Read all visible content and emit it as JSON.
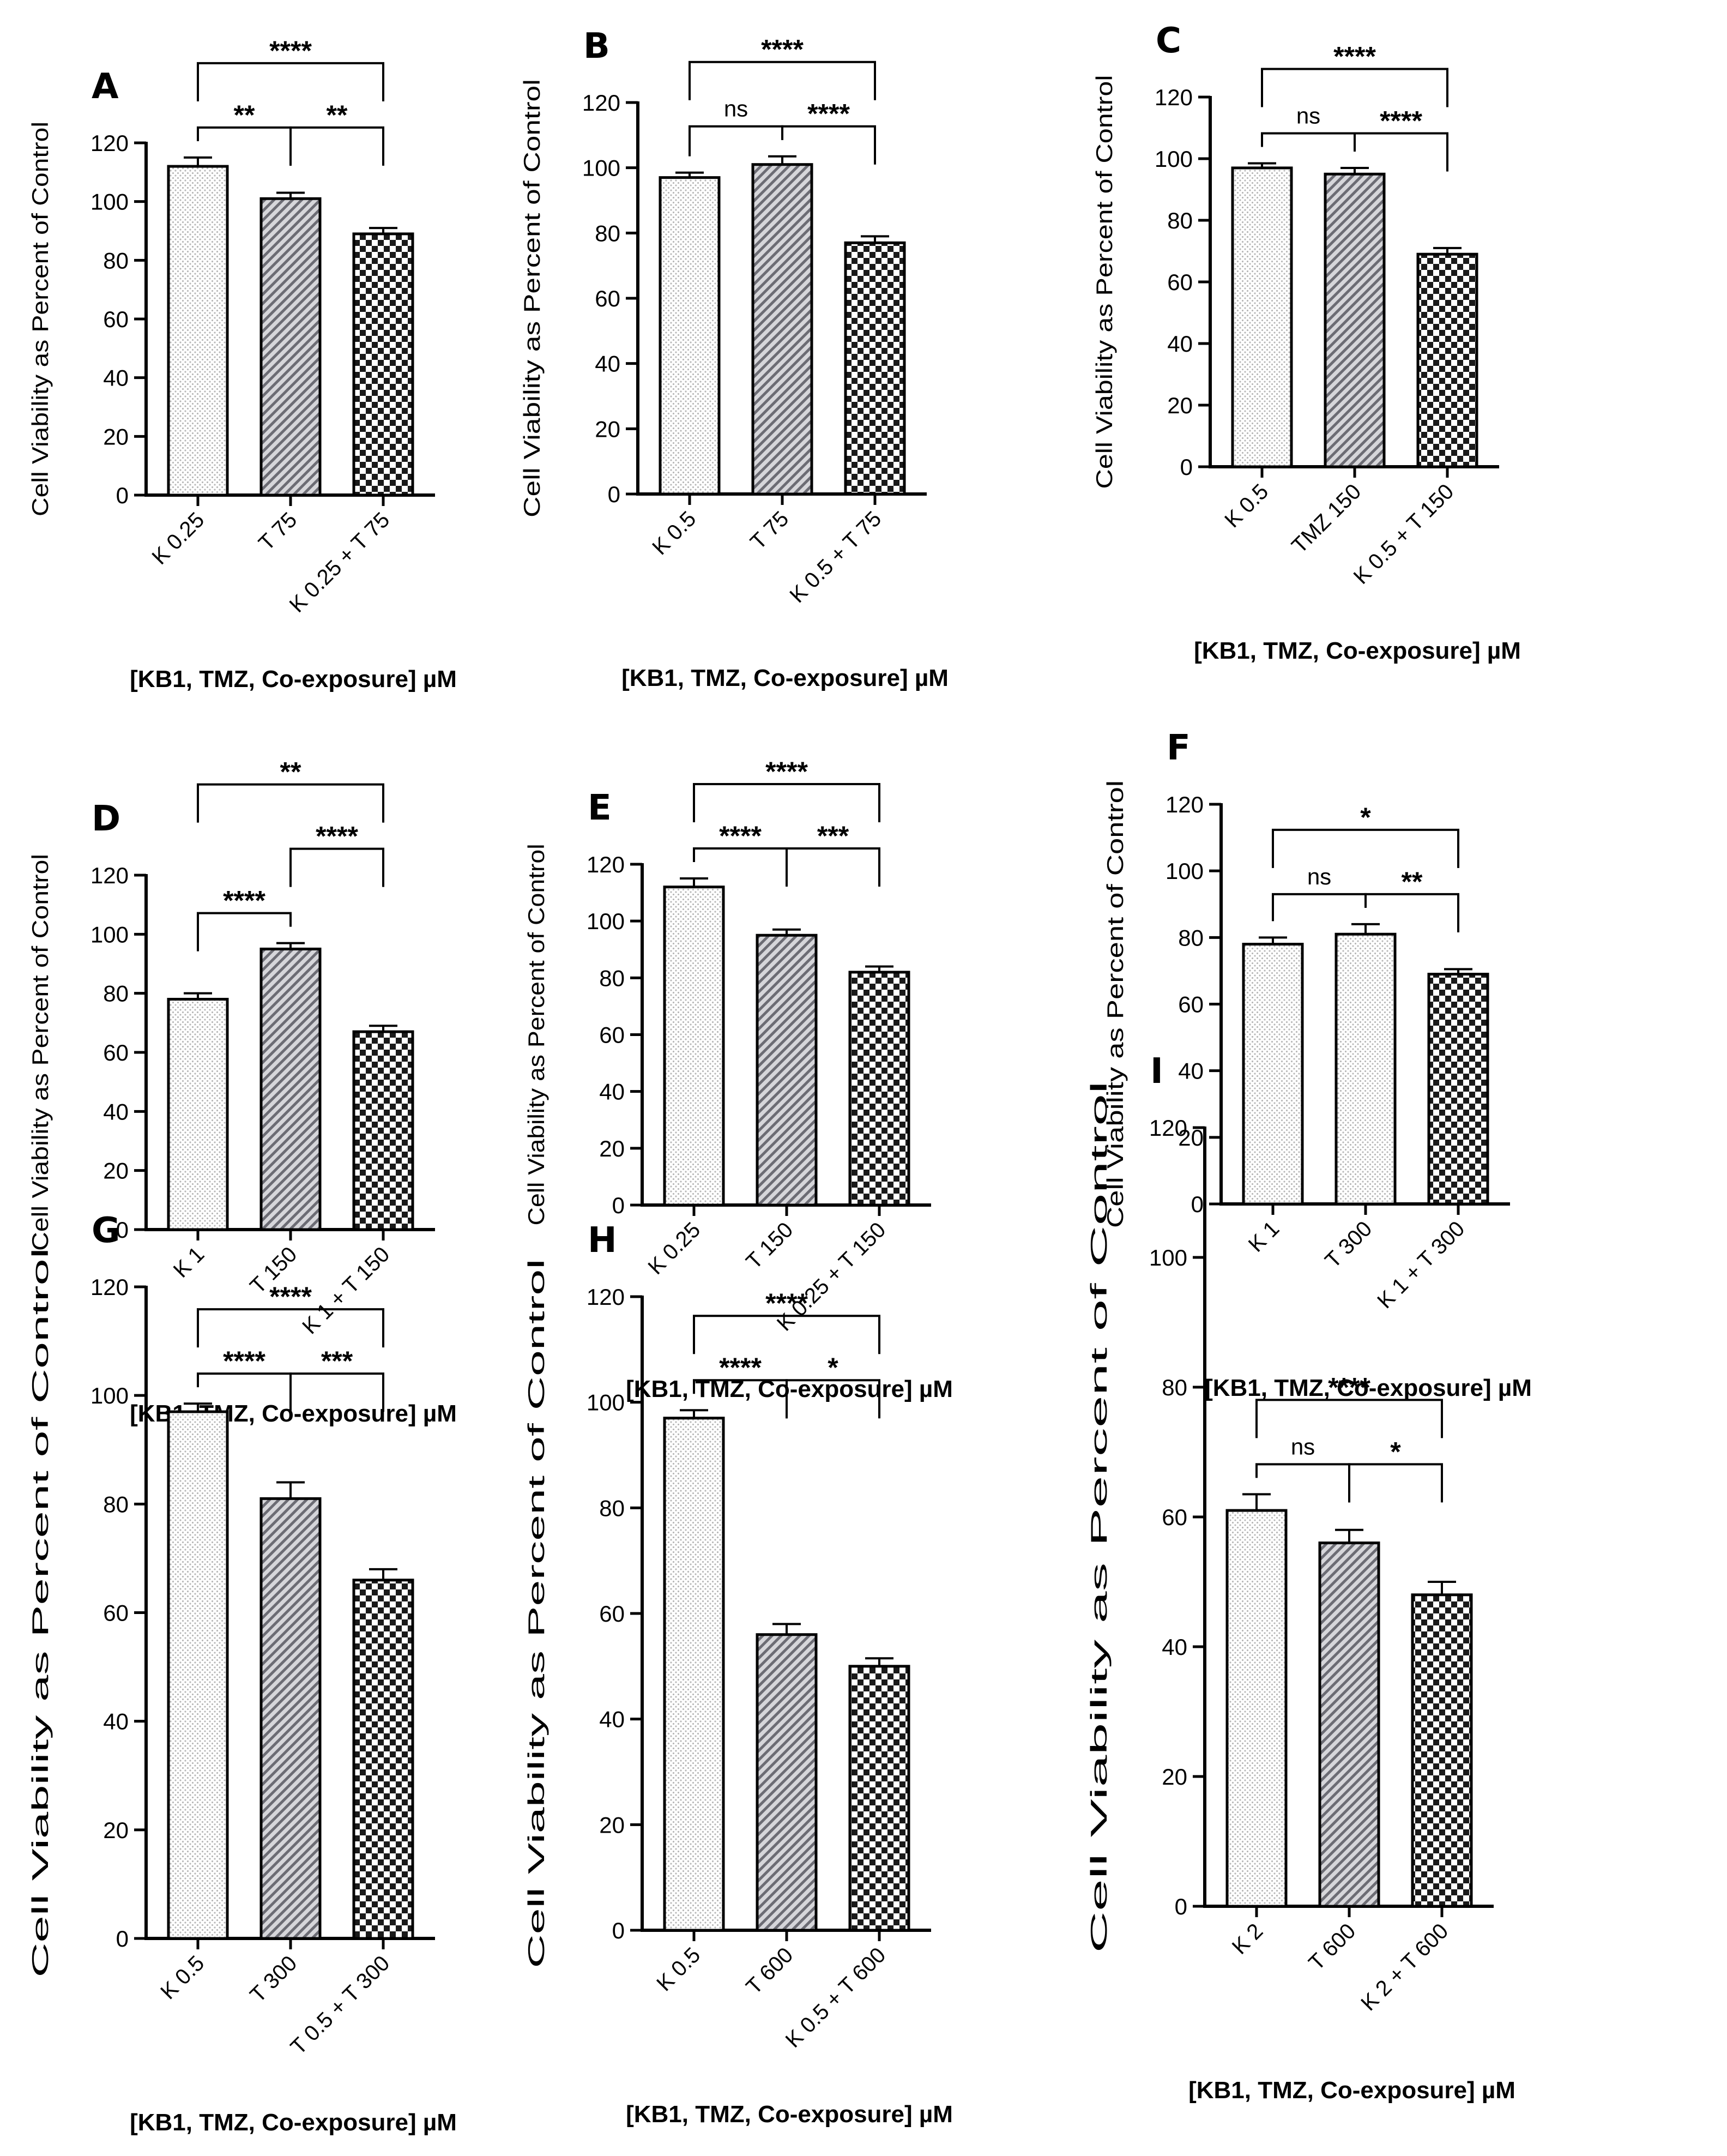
{
  "figure": {
    "ylabel": "Cell Viability as Percent of Control"
  },
  "colors": {
    "ink": "#000000",
    "paper": "#ffffff",
    "dots": "#b8b8b8",
    "checker": "#1a1a1a",
    "diag": "#6c6c74"
  },
  "chart_data": [
    {
      "type": "bar",
      "panel": "A",
      "title": "A",
      "categories": [
        "K 0.25",
        "T 75",
        "K 0.25 + T 75"
      ],
      "values": [
        112,
        101,
        89
      ],
      "errors": [
        3,
        2,
        2
      ],
      "patterns": [
        "dots",
        "diag",
        "checker"
      ],
      "xlabel": "[KB1, TMZ, Co-exposure] µM",
      "ylabel": "Cell Viability as Percent of Control",
      "ylim": [
        0,
        120
      ],
      "yticks": [
        0,
        20,
        40,
        60,
        80,
        100,
        120
      ],
      "comparisons": [
        {
          "a": 0,
          "b": 1,
          "label": "**",
          "level": 1
        },
        {
          "a": 1,
          "b": 2,
          "label": "**",
          "level": 1
        },
        {
          "a": 0,
          "b": 2,
          "label": "****",
          "level": 2
        }
      ]
    },
    {
      "type": "bar",
      "panel": "B",
      "title": "B",
      "categories": [
        "K 0.5",
        "T 75",
        "K 0.5 + T 75"
      ],
      "values": [
        97,
        101,
        77
      ],
      "errors": [
        1.5,
        2.5,
        2
      ],
      "patterns": [
        "dots",
        "diag",
        "checker"
      ],
      "xlabel": "[KB1, TMZ, Co-exposure] µM",
      "ylabel": "Cell Viability as Percent of Control",
      "ylim": [
        0,
        120
      ],
      "yticks": [
        0,
        20,
        40,
        60,
        80,
        100,
        120
      ],
      "comparisons": [
        {
          "a": 0,
          "b": 1,
          "label": "ns",
          "level": 1
        },
        {
          "a": 1,
          "b": 2,
          "label": "****",
          "level": 1
        },
        {
          "a": 0,
          "b": 2,
          "label": "****",
          "level": 2
        }
      ]
    },
    {
      "type": "bar",
      "panel": "C",
      "title": "C",
      "categories": [
        "K 0.5",
        "TMZ 150",
        "K 0.5 + T 150"
      ],
      "values": [
        97,
        95,
        69
      ],
      "errors": [
        1.5,
        2,
        2
      ],
      "patterns": [
        "dots",
        "diag",
        "checker"
      ],
      "xlabel": "[KB1, TMZ, Co-exposure] µM",
      "ylabel": "Cell Viability as Percent of Control",
      "ylim": [
        0,
        120
      ],
      "yticks": [
        0,
        20,
        40,
        60,
        80,
        100,
        120
      ],
      "comparisons": [
        {
          "a": 0,
          "b": 1,
          "label": "ns",
          "level": 1
        },
        {
          "a": 1,
          "b": 2,
          "label": "****",
          "level": 1
        },
        {
          "a": 0,
          "b": 2,
          "label": "****",
          "level": 2
        }
      ]
    },
    {
      "type": "bar",
      "panel": "D",
      "title": "D",
      "categories": [
        "K 1",
        "T 150",
        "K 1 + T 150"
      ],
      "values": [
        78,
        95,
        67
      ],
      "errors": [
        2,
        2,
        2
      ],
      "patterns": [
        "dots",
        "diag",
        "checker"
      ],
      "xlabel": "[KB1, TMZ, Co-exposure] µM",
      "ylabel": "Cell Viability as Percent of Control",
      "ylim": [
        0,
        120
      ],
      "yticks": [
        0,
        20,
        40,
        60,
        80,
        100,
        120
      ],
      "comparisons": [
        {
          "a": 0,
          "b": 1,
          "label": "****",
          "level": 1
        },
        {
          "a": 1,
          "b": 2,
          "label": "****",
          "level": 2
        },
        {
          "a": 0,
          "b": 2,
          "label": "**",
          "level": 3
        }
      ]
    },
    {
      "type": "bar",
      "panel": "E",
      "title": "E",
      "categories": [
        "K 0.25",
        "T 150",
        "K 0.25 + T 150"
      ],
      "values": [
        112,
        95,
        82
      ],
      "errors": [
        3,
        2,
        2
      ],
      "patterns": [
        "dots",
        "diag",
        "checker"
      ],
      "xlabel": "[KB1, TMZ, Co-exposure] µM",
      "ylabel": "Cell Viability as Percent of Control",
      "ylim": [
        0,
        120
      ],
      "yticks": [
        0,
        20,
        40,
        60,
        80,
        100,
        120
      ],
      "comparisons": [
        {
          "a": 0,
          "b": 1,
          "label": "****",
          "level": 1
        },
        {
          "a": 1,
          "b": 2,
          "label": "***",
          "level": 1
        },
        {
          "a": 0,
          "b": 2,
          "label": "****",
          "level": 2
        }
      ]
    },
    {
      "type": "bar",
      "panel": "F",
      "title": "F",
      "categories": [
        "K 1",
        "T 300",
        "K 1 + T 300"
      ],
      "values": [
        78,
        81,
        69
      ],
      "errors": [
        2,
        3,
        1.5
      ],
      "patterns": [
        "dots",
        "dots",
        "checker"
      ],
      "xlabel": "[KB1, TMZ, Co-exposure] µM",
      "ylabel": "Cell Viability as Percent of Control",
      "ylim": [
        0,
        120
      ],
      "yticks": [
        0,
        20,
        40,
        60,
        80,
        100,
        120
      ],
      "comparisons": [
        {
          "a": 0,
          "b": 1,
          "label": "ns",
          "level": 1
        },
        {
          "a": 1,
          "b": 2,
          "label": "**",
          "level": 1
        },
        {
          "a": 0,
          "b": 2,
          "label": "*",
          "level": 2
        }
      ]
    },
    {
      "type": "bar",
      "panel": "G",
      "title": "G",
      "categories": [
        "K 0.5",
        "T 300",
        "T 0.5 + T 300"
      ],
      "values": [
        97,
        81,
        66
      ],
      "errors": [
        1.5,
        3,
        2
      ],
      "patterns": [
        "dots",
        "diag",
        "checker"
      ],
      "xlabel": "[KB1, TMZ, Co-exposure] µM",
      "ylabel": "Cell Viability as Percent of Control",
      "ylim": [
        0,
        120
      ],
      "yticks": [
        0,
        20,
        40,
        60,
        80,
        100,
        120
      ],
      "comparisons": [
        {
          "a": 0,
          "b": 1,
          "label": "****",
          "level": 1
        },
        {
          "a": 1,
          "b": 2,
          "label": "***",
          "level": 1
        },
        {
          "a": 0,
          "b": 2,
          "label": "****",
          "level": 2
        }
      ]
    },
    {
      "type": "bar",
      "panel": "H",
      "title": "H",
      "categories": [
        "K 0.5",
        "T 600",
        "K 0.5 + T 600"
      ],
      "values": [
        97,
        56,
        50
      ],
      "errors": [
        1.5,
        2,
        1.5
      ],
      "patterns": [
        "dots",
        "diag",
        "checker"
      ],
      "xlabel": "[KB1, TMZ, Co-exposure] µM",
      "ylabel": "Cell Viability as Percent of Control",
      "ylim": [
        0,
        120
      ],
      "yticks": [
        0,
        20,
        40,
        60,
        80,
        100,
        120
      ],
      "comparisons": [
        {
          "a": 0,
          "b": 1,
          "label": "****",
          "level": 1
        },
        {
          "a": 1,
          "b": 2,
          "label": "*",
          "level": 1
        },
        {
          "a": 0,
          "b": 2,
          "label": "****",
          "level": 2
        }
      ]
    },
    {
      "type": "bar",
      "panel": "I",
      "title": "I",
      "categories": [
        "K 2",
        "T 600",
        "K 2 + T 600"
      ],
      "values": [
        61,
        56,
        48
      ],
      "errors": [
        2.5,
        2,
        2
      ],
      "patterns": [
        "dots",
        "diag",
        "checker"
      ],
      "xlabel": "[KB1, TMZ, Co-exposure] µM",
      "ylabel": "Cell Viability as Percent of Control",
      "ylim": [
        0,
        120
      ],
      "yticks": [
        0,
        20,
        40,
        60,
        80,
        100,
        120
      ],
      "comparisons": [
        {
          "a": 0,
          "b": 1,
          "label": "ns",
          "level": 1
        },
        {
          "a": 1,
          "b": 2,
          "label": "*",
          "level": 1
        },
        {
          "a": 0,
          "b": 2,
          "label": "****",
          "level": 2
        }
      ]
    }
  ]
}
